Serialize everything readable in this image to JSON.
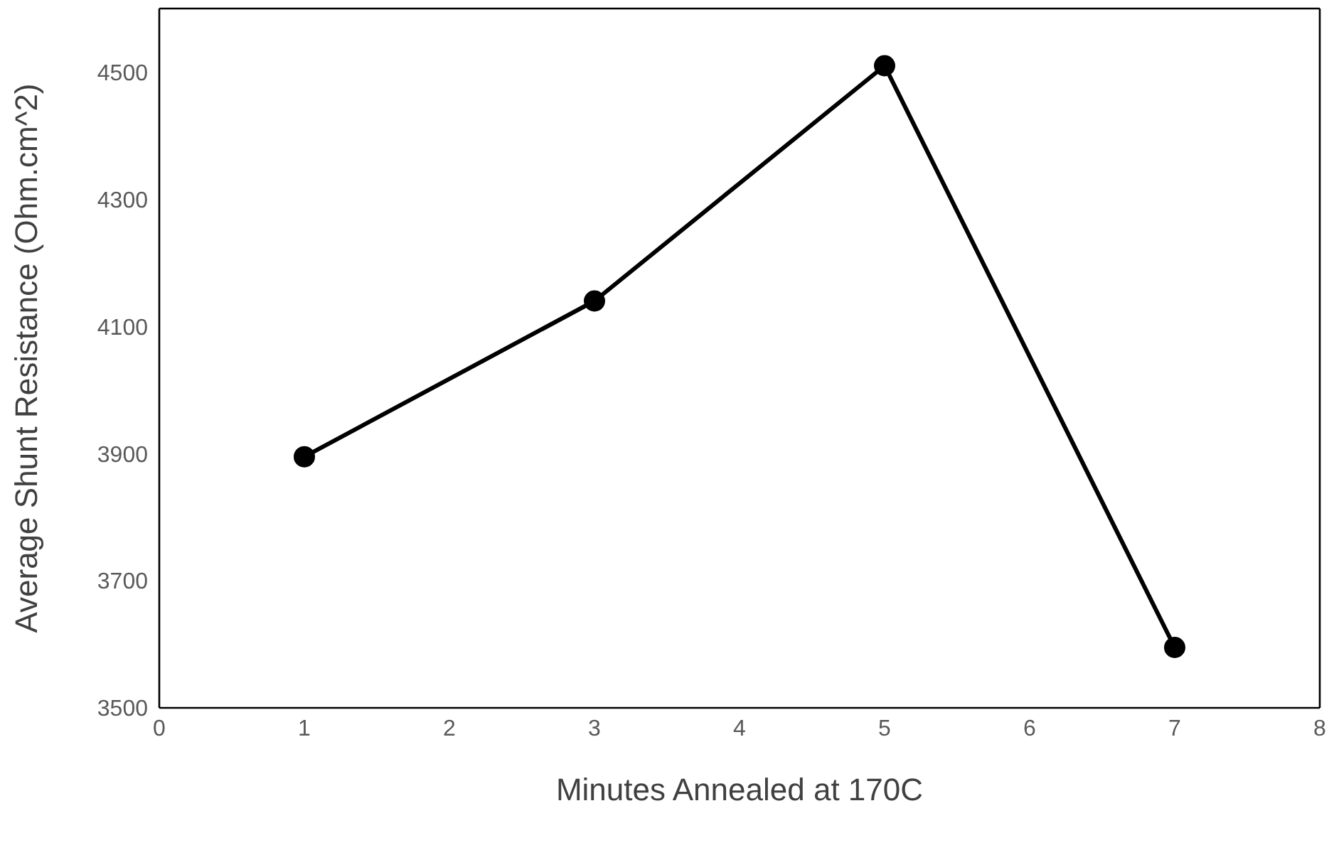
{
  "chart_data": {
    "type": "line",
    "xlabel": "Minutes Annealed at 170C",
    "ylabel": "Average Shunt Resistance (Ohm.cm^2)",
    "x": [
      1,
      3,
      5,
      7
    ],
    "series": [
      {
        "color": "#000000",
        "values": [
          3895,
          4140,
          4510,
          3595
        ]
      }
    ],
    "xlim": [
      0,
      8
    ],
    "xticks": [
      0,
      1,
      2,
      3,
      4,
      5,
      6,
      7,
      8
    ],
    "ylim": [
      3500,
      4600
    ],
    "yticks": [
      3500,
      3700,
      3900,
      4100,
      4300,
      4500
    ],
    "grid": false,
    "marker": "circle",
    "line_style": "solid"
  }
}
